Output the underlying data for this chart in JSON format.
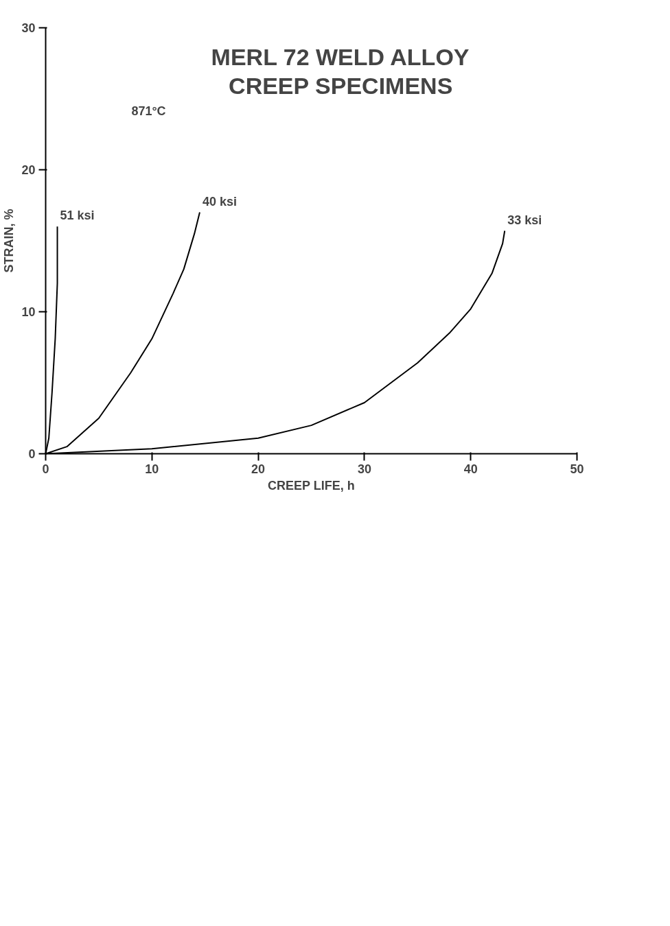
{
  "chart_data": {
    "type": "line",
    "title": "MERL 72 WELD ALLOY\nCREEP SPECIMENS",
    "xlabel": "CREEP LIFE, h",
    "ylabel": "STRAIN, %",
    "xlim": [
      0,
      50
    ],
    "xticks": [
      0,
      10,
      20,
      30,
      40,
      50
    ],
    "ylim": [
      0,
      30
    ],
    "yticks": [
      0,
      10,
      20,
      30
    ],
    "grid": false,
    "legend": false,
    "annotations": [
      "871°C"
    ],
    "series": [
      {
        "name": "51 ksi",
        "color": "#000000",
        "x": [
          0,
          0.3,
          0.6,
          0.9,
          1.1,
          1.1
        ],
        "values": [
          0,
          1.1,
          4.3,
          8.1,
          12,
          16
        ]
      },
      {
        "name": "40 ksi",
        "color": "#000000",
        "x": [
          0,
          2,
          5,
          8,
          10,
          12,
          13,
          14,
          14.5
        ],
        "values": [
          0,
          0.5,
          2.5,
          5.7,
          8.1,
          11.3,
          13,
          15.5,
          17
        ]
      },
      {
        "name": "33 ksi",
        "color": "#000000",
        "x": [
          0,
          10,
          20,
          25,
          30,
          35,
          38,
          40,
          42,
          43,
          43.2
        ],
        "values": [
          0,
          0.35,
          1.1,
          2.0,
          3.6,
          6.4,
          8.5,
          10.2,
          12.7,
          14.8,
          15.7
        ]
      }
    ]
  }
}
